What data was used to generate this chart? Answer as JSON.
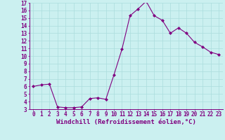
{
  "x": [
    0,
    1,
    2,
    3,
    4,
    5,
    6,
    7,
    8,
    9,
    10,
    11,
    12,
    13,
    14,
    15,
    16,
    17,
    18,
    19,
    20,
    21,
    22,
    23
  ],
  "y": [
    6.0,
    6.2,
    6.3,
    3.3,
    3.2,
    3.2,
    3.3,
    4.4,
    4.5,
    4.3,
    7.5,
    10.9,
    15.3,
    16.2,
    17.2,
    15.3,
    14.7,
    13.0,
    13.7,
    13.0,
    11.8,
    11.2,
    10.5,
    10.2
  ],
  "line_color": "#800080",
  "marker": "D",
  "marker_size": 2,
  "background_color": "#cbf0f0",
  "grid_color": "#aadddd",
  "xlabel": "Windchill (Refroidissement éolien,°C)",
  "xlabel_color": "#800080",
  "tick_color": "#800080",
  "ylim": [
    3,
    17
  ],
  "xlim": [
    -0.5,
    23.5
  ],
  "yticks": [
    3,
    4,
    5,
    6,
    7,
    8,
    9,
    10,
    11,
    12,
    13,
    14,
    15,
    16,
    17
  ],
  "xticks": [
    0,
    1,
    2,
    3,
    4,
    5,
    6,
    7,
    8,
    9,
    10,
    11,
    12,
    13,
    14,
    15,
    16,
    17,
    18,
    19,
    20,
    21,
    22,
    23
  ],
  "tick_fontsize": 5.5,
  "xlabel_fontsize": 6.5
}
